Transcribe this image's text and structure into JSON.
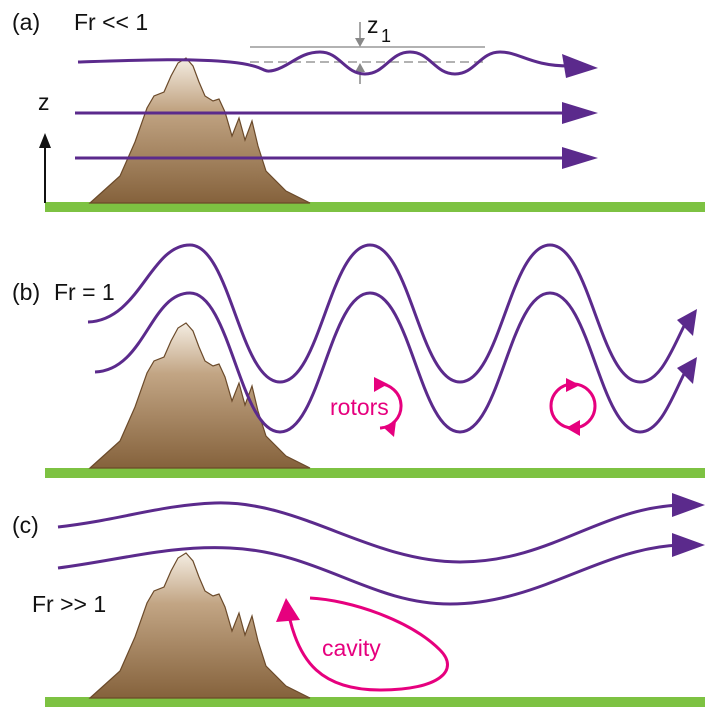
{
  "panels": [
    {
      "label": "(a)",
      "froude": "Fr << 1",
      "displacement": {
        "symbol": "z",
        "subscript": "1"
      },
      "axis_label": "z"
    },
    {
      "label": "(b)",
      "froude": "Fr = 1",
      "annotation": "rotors"
    },
    {
      "label": "(c)",
      "froude": "Fr >> 1",
      "annotation": "cavity"
    }
  ]
}
